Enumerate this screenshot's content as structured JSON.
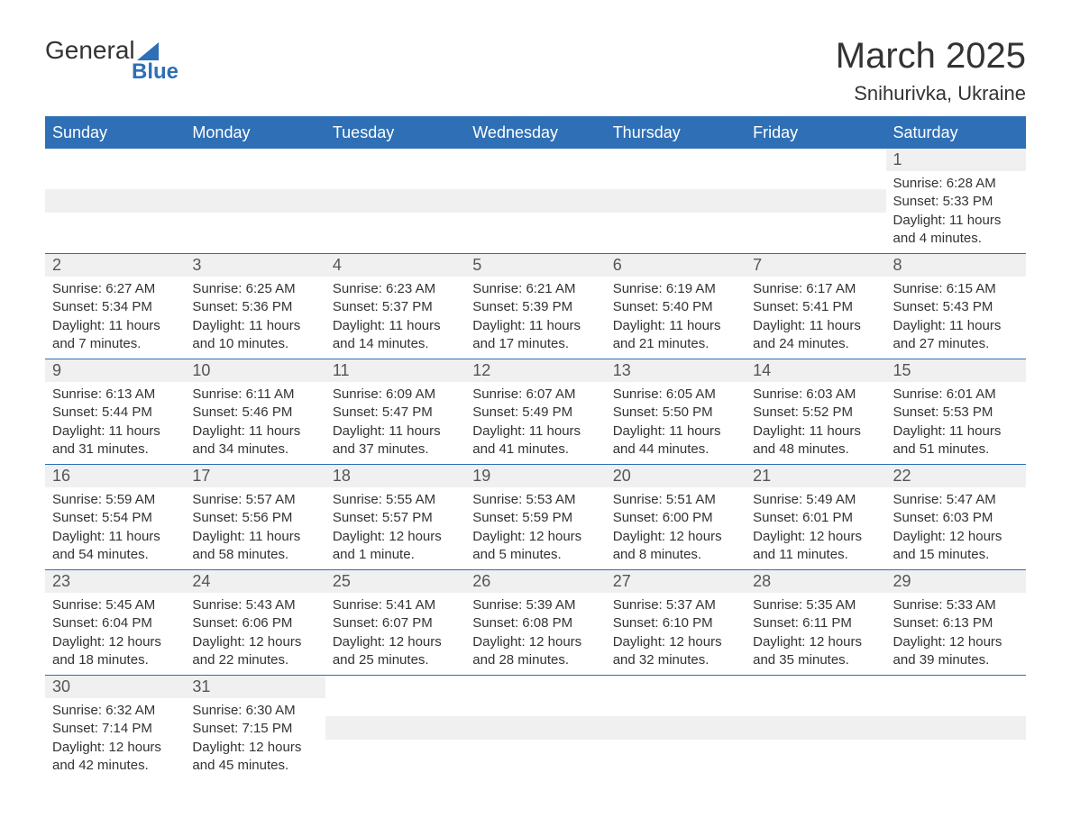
{
  "logo": {
    "main": "General",
    "sub": "Blue"
  },
  "title": "March 2025",
  "location": "Snihurivka, Ukraine",
  "weekdays": [
    "Sunday",
    "Monday",
    "Tuesday",
    "Wednesday",
    "Thursday",
    "Friday",
    "Saturday"
  ],
  "colors": {
    "header_bg": "#2e6fb5",
    "header_text": "#ffffff",
    "daynum_bg": "#f0f0f0",
    "text": "#333333"
  },
  "weeks": [
    [
      null,
      null,
      null,
      null,
      null,
      null,
      {
        "day": "1",
        "sunrise": "Sunrise: 6:28 AM",
        "sunset": "Sunset: 5:33 PM",
        "daylight1": "Daylight: 11 hours",
        "daylight2": "and 4 minutes."
      }
    ],
    [
      {
        "day": "2",
        "sunrise": "Sunrise: 6:27 AM",
        "sunset": "Sunset: 5:34 PM",
        "daylight1": "Daylight: 11 hours",
        "daylight2": "and 7 minutes."
      },
      {
        "day": "3",
        "sunrise": "Sunrise: 6:25 AM",
        "sunset": "Sunset: 5:36 PM",
        "daylight1": "Daylight: 11 hours",
        "daylight2": "and 10 minutes."
      },
      {
        "day": "4",
        "sunrise": "Sunrise: 6:23 AM",
        "sunset": "Sunset: 5:37 PM",
        "daylight1": "Daylight: 11 hours",
        "daylight2": "and 14 minutes."
      },
      {
        "day": "5",
        "sunrise": "Sunrise: 6:21 AM",
        "sunset": "Sunset: 5:39 PM",
        "daylight1": "Daylight: 11 hours",
        "daylight2": "and 17 minutes."
      },
      {
        "day": "6",
        "sunrise": "Sunrise: 6:19 AM",
        "sunset": "Sunset: 5:40 PM",
        "daylight1": "Daylight: 11 hours",
        "daylight2": "and 21 minutes."
      },
      {
        "day": "7",
        "sunrise": "Sunrise: 6:17 AM",
        "sunset": "Sunset: 5:41 PM",
        "daylight1": "Daylight: 11 hours",
        "daylight2": "and 24 minutes."
      },
      {
        "day": "8",
        "sunrise": "Sunrise: 6:15 AM",
        "sunset": "Sunset: 5:43 PM",
        "daylight1": "Daylight: 11 hours",
        "daylight2": "and 27 minutes."
      }
    ],
    [
      {
        "day": "9",
        "sunrise": "Sunrise: 6:13 AM",
        "sunset": "Sunset: 5:44 PM",
        "daylight1": "Daylight: 11 hours",
        "daylight2": "and 31 minutes."
      },
      {
        "day": "10",
        "sunrise": "Sunrise: 6:11 AM",
        "sunset": "Sunset: 5:46 PM",
        "daylight1": "Daylight: 11 hours",
        "daylight2": "and 34 minutes."
      },
      {
        "day": "11",
        "sunrise": "Sunrise: 6:09 AM",
        "sunset": "Sunset: 5:47 PM",
        "daylight1": "Daylight: 11 hours",
        "daylight2": "and 37 minutes."
      },
      {
        "day": "12",
        "sunrise": "Sunrise: 6:07 AM",
        "sunset": "Sunset: 5:49 PM",
        "daylight1": "Daylight: 11 hours",
        "daylight2": "and 41 minutes."
      },
      {
        "day": "13",
        "sunrise": "Sunrise: 6:05 AM",
        "sunset": "Sunset: 5:50 PM",
        "daylight1": "Daylight: 11 hours",
        "daylight2": "and 44 minutes."
      },
      {
        "day": "14",
        "sunrise": "Sunrise: 6:03 AM",
        "sunset": "Sunset: 5:52 PM",
        "daylight1": "Daylight: 11 hours",
        "daylight2": "and 48 minutes."
      },
      {
        "day": "15",
        "sunrise": "Sunrise: 6:01 AM",
        "sunset": "Sunset: 5:53 PM",
        "daylight1": "Daylight: 11 hours",
        "daylight2": "and 51 minutes."
      }
    ],
    [
      {
        "day": "16",
        "sunrise": "Sunrise: 5:59 AM",
        "sunset": "Sunset: 5:54 PM",
        "daylight1": "Daylight: 11 hours",
        "daylight2": "and 54 minutes."
      },
      {
        "day": "17",
        "sunrise": "Sunrise: 5:57 AM",
        "sunset": "Sunset: 5:56 PM",
        "daylight1": "Daylight: 11 hours",
        "daylight2": "and 58 minutes."
      },
      {
        "day": "18",
        "sunrise": "Sunrise: 5:55 AM",
        "sunset": "Sunset: 5:57 PM",
        "daylight1": "Daylight: 12 hours",
        "daylight2": "and 1 minute."
      },
      {
        "day": "19",
        "sunrise": "Sunrise: 5:53 AM",
        "sunset": "Sunset: 5:59 PM",
        "daylight1": "Daylight: 12 hours",
        "daylight2": "and 5 minutes."
      },
      {
        "day": "20",
        "sunrise": "Sunrise: 5:51 AM",
        "sunset": "Sunset: 6:00 PM",
        "daylight1": "Daylight: 12 hours",
        "daylight2": "and 8 minutes."
      },
      {
        "day": "21",
        "sunrise": "Sunrise: 5:49 AM",
        "sunset": "Sunset: 6:01 PM",
        "daylight1": "Daylight: 12 hours",
        "daylight2": "and 11 minutes."
      },
      {
        "day": "22",
        "sunrise": "Sunrise: 5:47 AM",
        "sunset": "Sunset: 6:03 PM",
        "daylight1": "Daylight: 12 hours",
        "daylight2": "and 15 minutes."
      }
    ],
    [
      {
        "day": "23",
        "sunrise": "Sunrise: 5:45 AM",
        "sunset": "Sunset: 6:04 PM",
        "daylight1": "Daylight: 12 hours",
        "daylight2": "and 18 minutes."
      },
      {
        "day": "24",
        "sunrise": "Sunrise: 5:43 AM",
        "sunset": "Sunset: 6:06 PM",
        "daylight1": "Daylight: 12 hours",
        "daylight2": "and 22 minutes."
      },
      {
        "day": "25",
        "sunrise": "Sunrise: 5:41 AM",
        "sunset": "Sunset: 6:07 PM",
        "daylight1": "Daylight: 12 hours",
        "daylight2": "and 25 minutes."
      },
      {
        "day": "26",
        "sunrise": "Sunrise: 5:39 AM",
        "sunset": "Sunset: 6:08 PM",
        "daylight1": "Daylight: 12 hours",
        "daylight2": "and 28 minutes."
      },
      {
        "day": "27",
        "sunrise": "Sunrise: 5:37 AM",
        "sunset": "Sunset: 6:10 PM",
        "daylight1": "Daylight: 12 hours",
        "daylight2": "and 32 minutes."
      },
      {
        "day": "28",
        "sunrise": "Sunrise: 5:35 AM",
        "sunset": "Sunset: 6:11 PM",
        "daylight1": "Daylight: 12 hours",
        "daylight2": "and 35 minutes."
      },
      {
        "day": "29",
        "sunrise": "Sunrise: 5:33 AM",
        "sunset": "Sunset: 6:13 PM",
        "daylight1": "Daylight: 12 hours",
        "daylight2": "and 39 minutes."
      }
    ],
    [
      {
        "day": "30",
        "sunrise": "Sunrise: 6:32 AM",
        "sunset": "Sunset: 7:14 PM",
        "daylight1": "Daylight: 12 hours",
        "daylight2": "and 42 minutes."
      },
      {
        "day": "31",
        "sunrise": "Sunrise: 6:30 AM",
        "sunset": "Sunset: 7:15 PM",
        "daylight1": "Daylight: 12 hours",
        "daylight2": "and 45 minutes."
      },
      null,
      null,
      null,
      null,
      null
    ]
  ]
}
